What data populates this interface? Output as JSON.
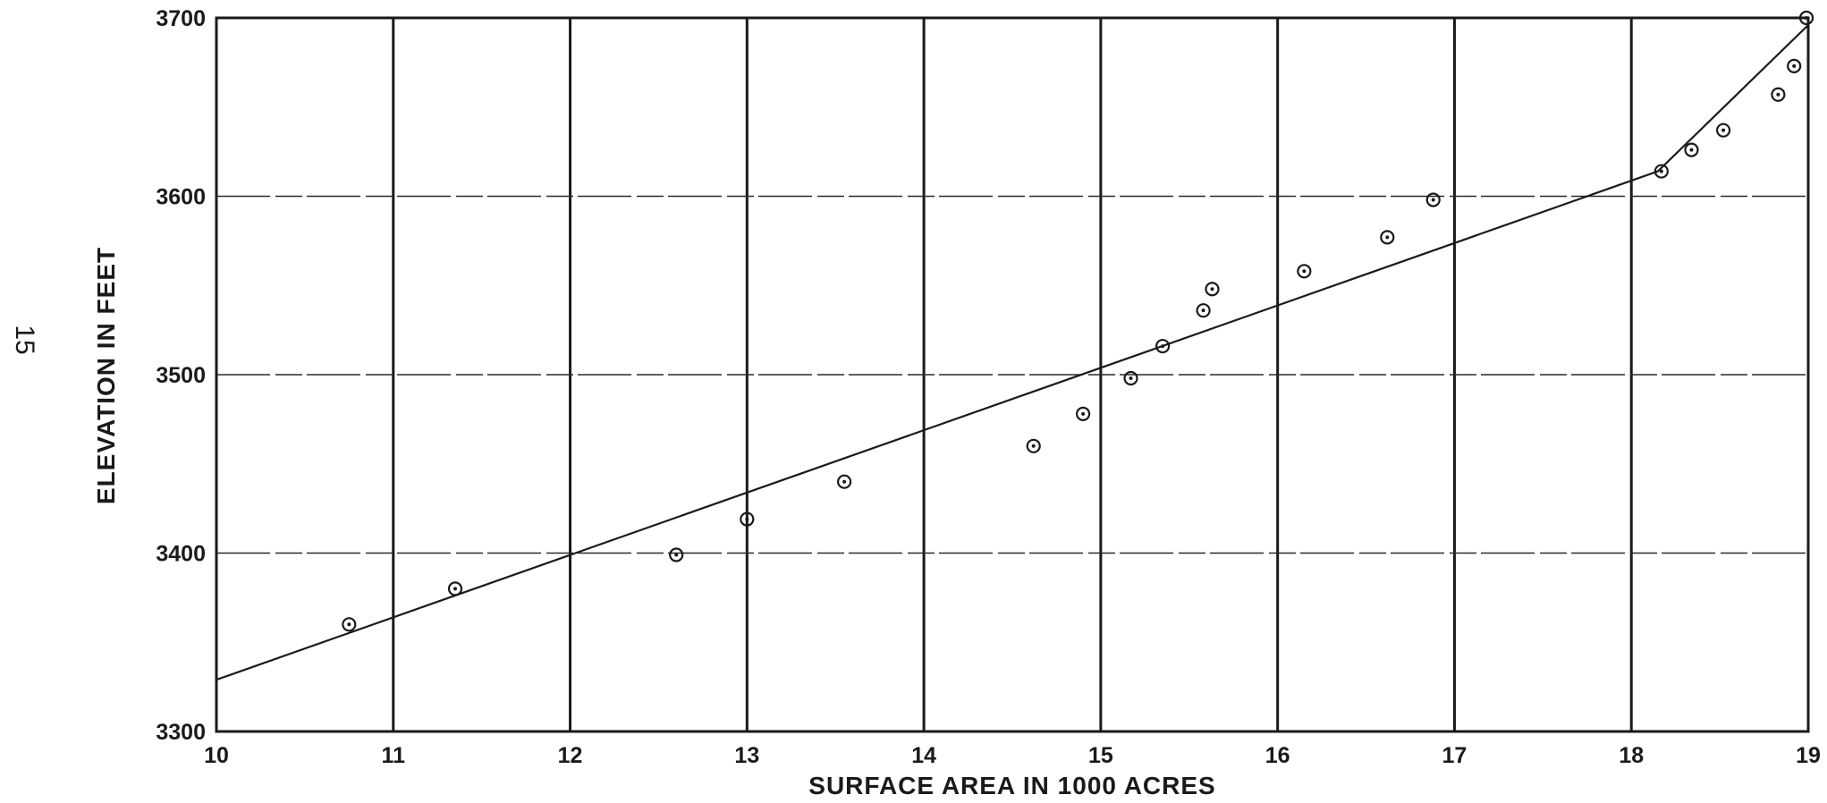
{
  "page_number": "15",
  "chart_data": {
    "type": "scatter",
    "title": "",
    "xlabel": "SURFACE AREA IN 1000 ACRES",
    "ylabel": "ELEVATION IN FEET",
    "xlim": [
      10,
      19
    ],
    "ylim": [
      3300,
      3700
    ],
    "x_ticks": [
      10,
      11,
      12,
      13,
      14,
      15,
      16,
      17,
      18,
      19
    ],
    "y_ticks": [
      3300,
      3400,
      3500,
      3600,
      3700
    ],
    "x_tick_labels": [
      "10",
      "11",
      "12",
      "13",
      "14",
      "15",
      "16",
      "17",
      "18",
      "19"
    ],
    "y_tick_labels": [
      "3300",
      "3400",
      "3500",
      "3600",
      "3700"
    ],
    "grid": true,
    "series": [
      {
        "kind": "points",
        "x": [
          10.75,
          11.35,
          12.6,
          13.0,
          13.55,
          14.62,
          14.9,
          15.17,
          15.35,
          15.58,
          15.63,
          16.15,
          16.62,
          16.88,
          18.17,
          18.34,
          18.52,
          18.83,
          18.92,
          18.99
        ],
        "y": [
          3360,
          3380,
          3399,
          3419,
          3440,
          3460,
          3478,
          3498,
          3516,
          3536,
          3548,
          3558,
          3577,
          3598,
          3614,
          3626,
          3637,
          3657,
          3673,
          3700
        ]
      },
      {
        "kind": "line",
        "x": [
          10.0,
          18.15,
          19.0
        ],
        "y": [
          3329,
          3614,
          3696
        ]
      }
    ]
  }
}
